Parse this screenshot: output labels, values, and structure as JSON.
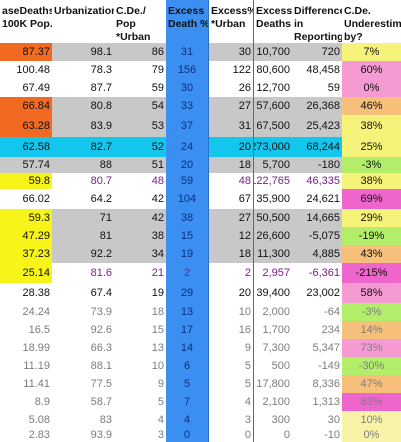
{
  "columns": [
    {
      "key": "case_deaths",
      "label": "aseDeaths\n100K Pop."
    },
    {
      "key": "urbanization",
      "label": "Urbanization"
    },
    {
      "key": "cde_pop_urban",
      "label": "C.De./\nPop\n*Urban"
    },
    {
      "key": "excess_death_pct",
      "label": "Excess\nDeath %"
    },
    {
      "key": "excess_pct_urban",
      "label": "Excess%\n*Urban"
    },
    {
      "key": "excess_deaths",
      "label": "Excess\nDeaths"
    },
    {
      "key": "difference_reporting",
      "label": "Difference\nin\nReporting"
    },
    {
      "key": "cde_underestimate",
      "label": "C.De.\nUnderestim\nby?"
    }
  ],
  "colors": {
    "orange": "#f26a21",
    "grey": "#c8c8c8",
    "cyan": "#12c6ee",
    "yellow": "#f7f41a",
    "excess_blue": "#3b8ff0",
    "green": "#b3ee6a",
    "pink": "#f59ad2",
    "magenta": "#ee66cc",
    "light_yellow": "#f6f37a",
    "light_orange": "#f7c07a",
    "pale_yellow": "#f8f3a6"
  },
  "rows": [
    {
      "case_deaths": "87.37",
      "urbanization": "98.1",
      "cde_pop_urban": "86",
      "excess_death_pct": "31",
      "excess_pct_urban": "30",
      "excess_deaths": "10,700",
      "difference_reporting": "720",
      "cde_underestimate": "7%"
    },
    {
      "case_deaths": "100.48",
      "urbanization": "78.3",
      "cde_pop_urban": "79",
      "excess_death_pct": "156",
      "excess_pct_urban": "122",
      "excess_deaths": "80,600",
      "difference_reporting": "48,458",
      "cde_underestimate": "60%"
    },
    {
      "case_deaths": "67.49",
      "urbanization": "87.7",
      "cde_pop_urban": "59",
      "excess_death_pct": "30",
      "excess_pct_urban": "26",
      "excess_deaths": "12,700",
      "difference_reporting": "59",
      "cde_underestimate": "0%"
    },
    {
      "case_deaths": "66.84",
      "urbanization": "80.8",
      "cde_pop_urban": "54",
      "excess_death_pct": "33",
      "excess_pct_urban": "27",
      "excess_deaths": "57,600",
      "difference_reporting": "26,368",
      "cde_underestimate": "46%"
    },
    {
      "case_deaths": "63.28",
      "urbanization": "83.9",
      "cde_pop_urban": "53",
      "excess_death_pct": "37",
      "excess_pct_urban": "31",
      "excess_deaths": "67,500",
      "difference_reporting": "25,423",
      "cde_underestimate": "38%"
    },
    {
      "case_deaths": "62.58",
      "urbanization": "82.7",
      "cde_pop_urban": "52",
      "excess_death_pct": "24",
      "excess_pct_urban": "20",
      "excess_deaths": "273,000",
      "difference_reporting": "68,244",
      "cde_underestimate": "25%"
    },
    {
      "case_deaths": "57.74",
      "urbanization": "88",
      "cde_pop_urban": "51",
      "excess_death_pct": "20",
      "excess_pct_urban": "18",
      "excess_deaths": "5,700",
      "difference_reporting": "-180",
      "cde_underestimate": "-3%"
    },
    {
      "case_deaths": "59.8",
      "urbanization": "80.7",
      "cde_pop_urban": "48",
      "excess_death_pct": "59",
      "excess_pct_urban": "48",
      "excess_deaths": "122,765",
      "difference_reporting": "46,335",
      "cde_underestimate": "38%"
    },
    {
      "case_deaths": "66.02",
      "urbanization": "64.2",
      "cde_pop_urban": "42",
      "excess_death_pct": "104",
      "excess_pct_urban": "67",
      "excess_deaths": "35,900",
      "difference_reporting": "24,621",
      "cde_underestimate": "69%"
    },
    {
      "case_deaths": "59.3",
      "urbanization": "71",
      "cde_pop_urban": "42",
      "excess_death_pct": "38",
      "excess_pct_urban": "27",
      "excess_deaths": "50,500",
      "difference_reporting": "14,665",
      "cde_underestimate": "29%"
    },
    {
      "case_deaths": "47.29",
      "urbanization": "81",
      "cde_pop_urban": "38",
      "excess_death_pct": "15",
      "excess_pct_urban": "12",
      "excess_deaths": "26,600",
      "difference_reporting": "-5,075",
      "cde_underestimate": "-19%"
    },
    {
      "case_deaths": "37.23",
      "urbanization": "92.2",
      "cde_pop_urban": "34",
      "excess_death_pct": "19",
      "excess_pct_urban": "18",
      "excess_deaths": "11,300",
      "difference_reporting": "4,885",
      "cde_underestimate": "43%"
    },
    {
      "case_deaths": "25.14",
      "urbanization": "81.6",
      "cde_pop_urban": "21",
      "excess_death_pct": "2",
      "excess_pct_urban": "2",
      "excess_deaths": "2,957",
      "difference_reporting": "-6,361",
      "cde_underestimate": "-215%"
    },
    {
      "case_deaths": "28.38",
      "urbanization": "67.4",
      "cde_pop_urban": "19",
      "excess_death_pct": "29",
      "excess_pct_urban": "20",
      "excess_deaths": "39,400",
      "difference_reporting": "23,002",
      "cde_underestimate": "58%"
    },
    {
      "case_deaths": "24.24",
      "urbanization": "73.9",
      "cde_pop_urban": "18",
      "excess_death_pct": "13",
      "excess_pct_urban": "10",
      "excess_deaths": "2,000",
      "difference_reporting": "-64",
      "cde_underestimate": "-3%"
    },
    {
      "case_deaths": "16.5",
      "urbanization": "92.6",
      "cde_pop_urban": "15",
      "excess_death_pct": "17",
      "excess_pct_urban": "16",
      "excess_deaths": "1,700",
      "difference_reporting": "234",
      "cde_underestimate": "14%"
    },
    {
      "case_deaths": "18.99",
      "urbanization": "66.3",
      "cde_pop_urban": "13",
      "excess_death_pct": "14",
      "excess_pct_urban": "9",
      "excess_deaths": "7,300",
      "difference_reporting": "5,347",
      "cde_underestimate": "73%"
    },
    {
      "case_deaths": "11.19",
      "urbanization": "88.1",
      "cde_pop_urban": "10",
      "excess_death_pct": "6",
      "excess_pct_urban": "5",
      "excess_deaths": "500",
      "difference_reporting": "-149",
      "cde_underestimate": "-30%"
    },
    {
      "case_deaths": "11.41",
      "urbanization": "77.5",
      "cde_pop_urban": "9",
      "excess_death_pct": "5",
      "excess_pct_urban": "5",
      "excess_deaths": "17,800",
      "difference_reporting": "8,336",
      "cde_underestimate": "47%"
    },
    {
      "case_deaths": "8.9",
      "urbanization": "58.7",
      "cde_pop_urban": "5",
      "excess_death_pct": "7",
      "excess_pct_urban": "4",
      "excess_deaths": "2,100",
      "difference_reporting": "1,313",
      "cde_underestimate": "63%"
    },
    {
      "case_deaths": "5.08",
      "urbanization": "83",
      "cde_pop_urban": "4",
      "excess_death_pct": "4",
      "excess_pct_urban": "3",
      "excess_deaths": "300",
      "difference_reporting": "30",
      "cde_underestimate": "10%"
    },
    {
      "case_deaths": "2.83",
      "urbanization": "93.9",
      "cde_pop_urban": "3",
      "excess_death_pct": "0",
      "excess_pct_urban": "0",
      "excess_deaths": "0",
      "difference_reporting": "-10",
      "cde_underestimate": "0%"
    }
  ]
}
